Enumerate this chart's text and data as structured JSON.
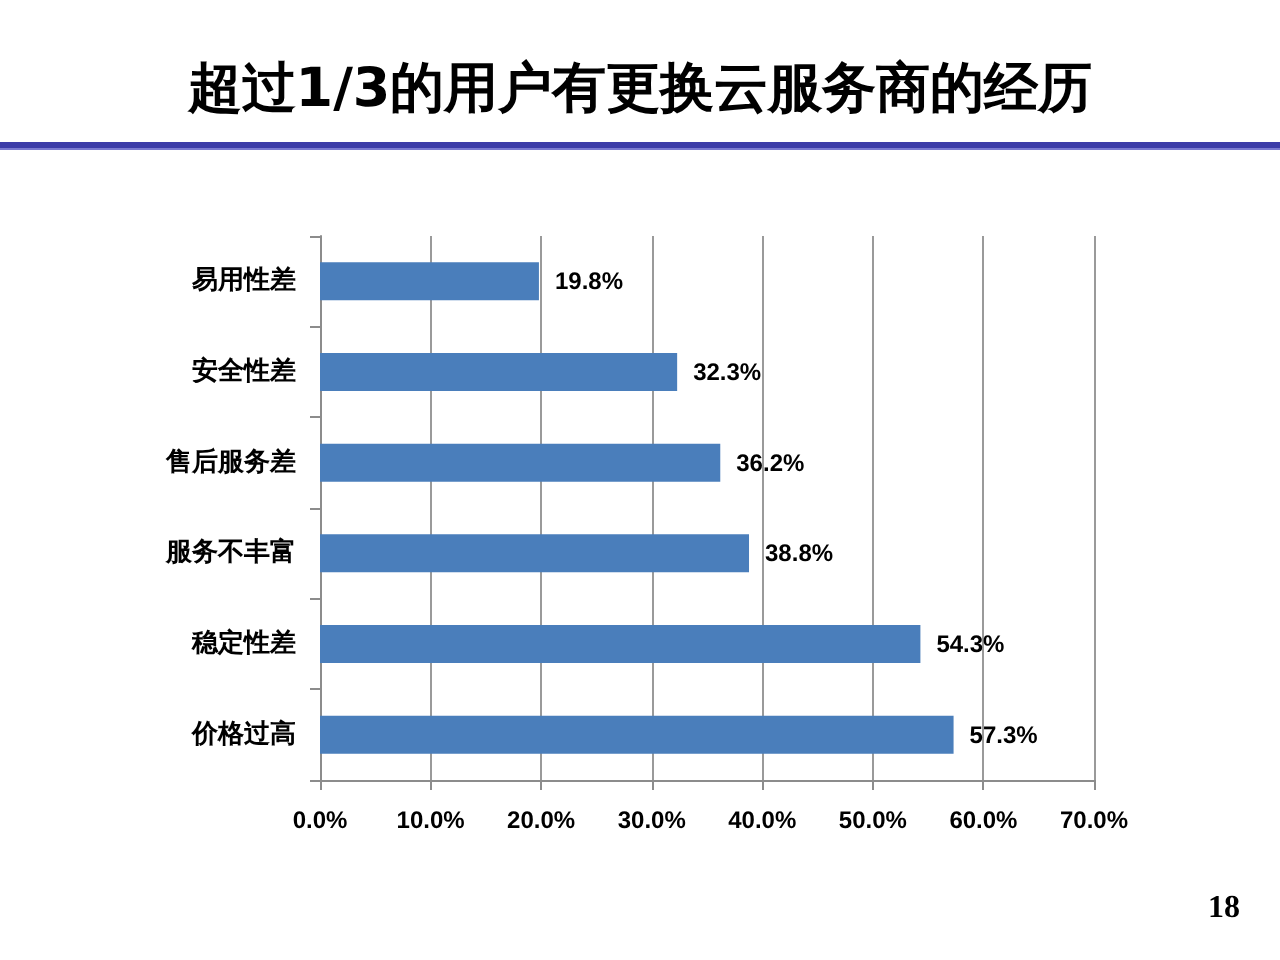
{
  "chart_data": {
    "type": "bar",
    "orientation": "horizontal",
    "title": "超过1/3的用户有更换云服务商的经历",
    "categories": [
      "易用性差",
      "安全性差",
      "售后服务差",
      "服务不丰富",
      "稳定性差",
      "价格过高"
    ],
    "values": [
      19.8,
      32.3,
      36.2,
      38.8,
      54.3,
      57.3
    ],
    "color": "#4a7ebb",
    "value_labels": [
      "19.8%",
      "32.3%",
      "36.2%",
      "38.8%",
      "54.3%",
      "57.3%"
    ],
    "xlim": [
      0,
      70
    ],
    "xticks": [
      {
        "value": 0,
        "label": "0.0%"
      },
      {
        "value": 10,
        "label": "10.0%"
      },
      {
        "value": 20,
        "label": "20.0%"
      },
      {
        "value": 30,
        "label": "30.0%"
      },
      {
        "value": 40,
        "label": "40.0%"
      },
      {
        "value": 50,
        "label": "50.0%"
      },
      {
        "value": 60,
        "label": "60.0%"
      },
      {
        "value": 70,
        "label": "70.0%"
      }
    ],
    "grid": "x",
    "annotations": [
      "18"
    ]
  }
}
